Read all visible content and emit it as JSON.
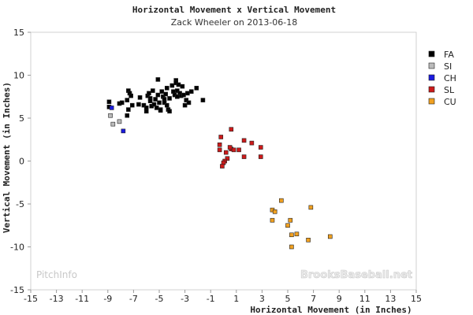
{
  "chart_data": {
    "type": "scatter",
    "title": "Horizontal Movement x Vertical Movement",
    "subtitle": "Zack Wheeler on 2013-06-18",
    "xlabel": "Horizontal Movement (in Inches)",
    "ylabel": "Vertical Movement (in Inches)",
    "xlim": [
      -15,
      15
    ],
    "ylim": [
      -15,
      15
    ],
    "x_ticks": [
      -15,
      -13,
      -11,
      -9,
      -7,
      -5,
      -3,
      -1,
      1,
      3,
      5,
      7,
      9,
      11,
      13,
      15
    ],
    "y_ticks": [
      -15,
      -10,
      -5,
      0,
      5,
      10,
      15
    ],
    "grid": false,
    "legend_position": "right",
    "watermark_left": "PitchInfo",
    "watermark_right": "BrooksBaseball.net",
    "series": [
      {
        "name": "FA",
        "color": "#000000",
        "points": [
          [
            -8.9,
            6.9
          ],
          [
            -8.9,
            6.3
          ],
          [
            -8.1,
            6.7
          ],
          [
            -7.9,
            6.8
          ],
          [
            -7.5,
            7.1
          ],
          [
            -7.4,
            8.2
          ],
          [
            -7.3,
            7.9
          ],
          [
            -7.2,
            7.6
          ],
          [
            -7.4,
            6.0
          ],
          [
            -7.5,
            5.3
          ],
          [
            -7.1,
            6.5
          ],
          [
            -6.6,
            6.6
          ],
          [
            -6.5,
            7.4
          ],
          [
            -6.2,
            6.5
          ],
          [
            -6.0,
            6.2
          ],
          [
            -6.0,
            5.8
          ],
          [
            -5.9,
            7.6
          ],
          [
            -5.8,
            7.9
          ],
          [
            -5.7,
            7.3
          ],
          [
            -5.7,
            7.0
          ],
          [
            -5.6,
            6.4
          ],
          [
            -5.5,
            8.2
          ],
          [
            -5.4,
            6.6
          ],
          [
            -5.3,
            7.2
          ],
          [
            -5.2,
            6.2
          ],
          [
            -5.1,
            9.5
          ],
          [
            -5.1,
            7.7
          ],
          [
            -5.0,
            6.8
          ],
          [
            -4.9,
            6.0
          ],
          [
            -4.9,
            5.9
          ],
          [
            -4.8,
            8.1
          ],
          [
            -4.7,
            7.5
          ],
          [
            -4.6,
            7.2
          ],
          [
            -4.6,
            6.8
          ],
          [
            -4.5,
            7.8
          ],
          [
            -4.4,
            8.5
          ],
          [
            -4.4,
            6.5
          ],
          [
            -4.3,
            6.0
          ],
          [
            -4.2,
            5.8
          ],
          [
            -4.2,
            7.3
          ],
          [
            -4.0,
            8.8
          ],
          [
            -3.9,
            8.1
          ],
          [
            -3.8,
            7.7
          ],
          [
            -3.7,
            9.4
          ],
          [
            -3.7,
            9.1
          ],
          [
            -3.6,
            8.2
          ],
          [
            -3.6,
            7.5
          ],
          [
            -3.5,
            8.9
          ],
          [
            -3.4,
            7.9
          ],
          [
            -3.3,
            7.6
          ],
          [
            -3.2,
            8.7
          ],
          [
            -3.1,
            7.7
          ],
          [
            -3.0,
            6.5
          ],
          [
            -2.9,
            7.1
          ],
          [
            -2.8,
            7.9
          ],
          [
            -2.7,
            6.8
          ],
          [
            -2.5,
            8.1
          ],
          [
            -2.1,
            8.5
          ],
          [
            -1.6,
            7.1
          ]
        ]
      },
      {
        "name": "SI",
        "color": "#bbbbbb",
        "points": [
          [
            -8.8,
            5.3
          ],
          [
            -8.6,
            4.3
          ],
          [
            -8.1,
            4.6
          ]
        ]
      },
      {
        "name": "CH",
        "color": "#1a1ae0",
        "points": [
          [
            -8.7,
            6.2
          ],
          [
            -7.8,
            3.5
          ]
        ]
      },
      {
        "name": "SL",
        "color": "#cc1a1a",
        "points": [
          [
            -0.2,
            2.8
          ],
          [
            0.6,
            3.7
          ],
          [
            -0.3,
            1.9
          ],
          [
            -0.3,
            1.3
          ],
          [
            0.2,
            1.0
          ],
          [
            0.6,
            1.4
          ],
          [
            0.8,
            1.3
          ],
          [
            0.3,
            0.3
          ],
          [
            0.1,
            0.0
          ],
          [
            0.0,
            -0.2
          ],
          [
            -0.1,
            -0.6
          ],
          [
            0.5,
            1.6
          ],
          [
            1.2,
            1.3
          ],
          [
            1.6,
            2.4
          ],
          [
            2.2,
            2.1
          ],
          [
            2.9,
            1.6
          ],
          [
            2.9,
            0.5
          ],
          [
            1.6,
            0.5
          ]
        ]
      },
      {
        "name": "CU",
        "color": "#f0a020",
        "points": [
          [
            4.5,
            -4.6
          ],
          [
            6.8,
            -5.4
          ],
          [
            3.8,
            -5.7
          ],
          [
            4.0,
            -5.9
          ],
          [
            3.8,
            -6.9
          ],
          [
            5.2,
            -6.9
          ],
          [
            5.0,
            -7.5
          ],
          [
            5.3,
            -8.6
          ],
          [
            5.7,
            -8.5
          ],
          [
            6.6,
            -9.2
          ],
          [
            8.3,
            -8.8
          ],
          [
            5.3,
            -10.0
          ]
        ]
      }
    ]
  }
}
